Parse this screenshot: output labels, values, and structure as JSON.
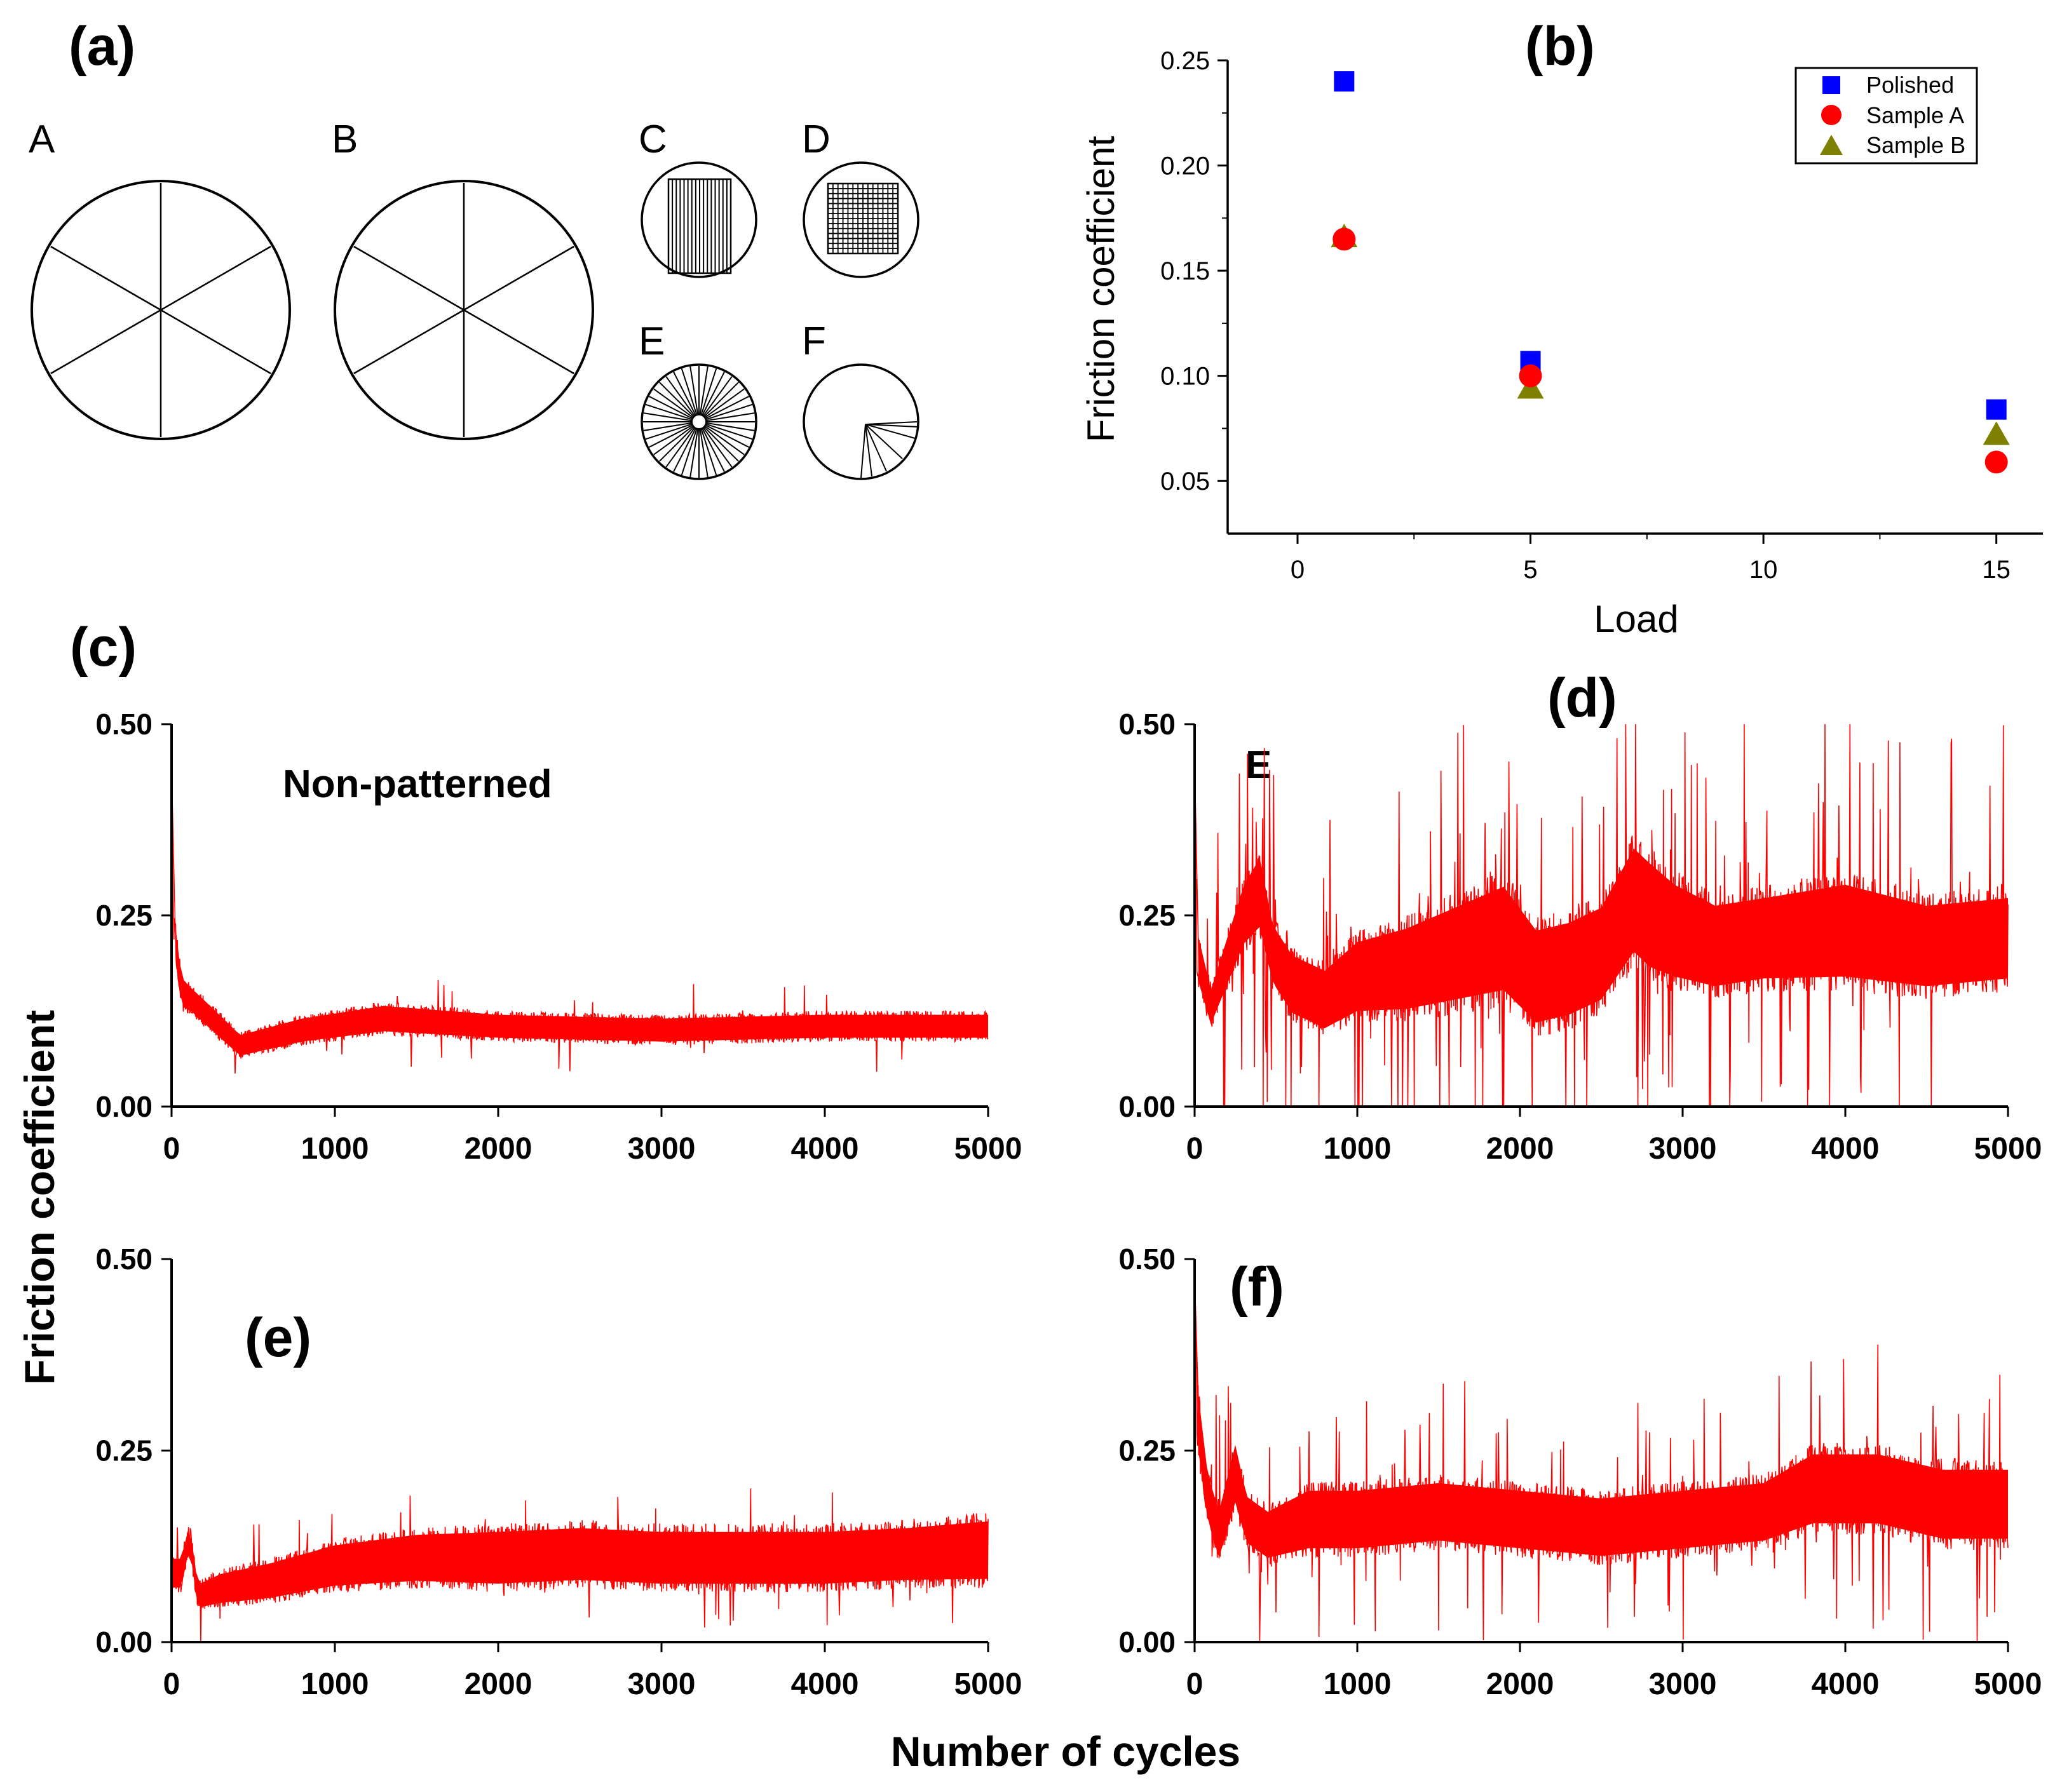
{
  "colors": {
    "polished": "#0000ff",
    "sample_a": "#ff0000",
    "sample_b": "#808000",
    "trace": "#ff0000",
    "ink": "#000000"
  },
  "panel_a": {
    "tag": "(a)",
    "patterns": [
      {
        "label": "A",
        "style": "spokes"
      },
      {
        "label": "B",
        "style": "spokes"
      },
      {
        "label": "C",
        "style": "vertical-lines"
      },
      {
        "label": "D",
        "style": "grid"
      },
      {
        "label": "E",
        "style": "dense-radial"
      },
      {
        "label": "F",
        "style": "fan"
      }
    ]
  },
  "chart_data": [
    {
      "id": "b",
      "type": "scatter",
      "tag": "(b)",
      "xlabel": "Load",
      "ylabel": "Friction coefficient",
      "xlim": [
        -1.5,
        16
      ],
      "ylim": [
        0.025,
        0.25
      ],
      "xticks": [
        0,
        5,
        10,
        15
      ],
      "xtick_labels": [
        "0",
        "5",
        "10",
        "15"
      ],
      "yticks": [
        0.05,
        0.1,
        0.15,
        0.2,
        0.25
      ],
      "ytick_labels": [
        "0.05",
        "0.10",
        "0.15",
        "0.20",
        "0.25"
      ],
      "legend_position": "top-right",
      "series": [
        {
          "name": "Polished",
          "marker": "square",
          "color": "#0000ff",
          "x": [
            1,
            5,
            15
          ],
          "y": [
            0.24,
            0.107,
            0.084
          ]
        },
        {
          "name": "Sample A",
          "marker": "circle",
          "color": "#ff0000",
          "x": [
            1,
            5,
            15
          ],
          "y": [
            0.165,
            0.1,
            0.059
          ]
        },
        {
          "name": "Sample B",
          "marker": "triangle",
          "color": "#808000",
          "x": [
            1,
            5,
            15
          ],
          "y": [
            0.166,
            0.094,
            0.072
          ]
        }
      ]
    },
    {
      "id": "c",
      "type": "line",
      "tag": "(c)",
      "annotation": "Non-patterned",
      "xlim": [
        0,
        5000
      ],
      "ylim": [
        0,
        0.5
      ],
      "xticks": [
        0,
        1000,
        2000,
        3000,
        4000,
        5000
      ],
      "xtick_labels": [
        "0",
        "1000",
        "2000",
        "3000",
        "4000",
        "5000"
      ],
      "yticks": [
        0,
        0.25,
        0.5
      ],
      "ytick_labels": [
        "0.00",
        "0.25",
        "0.50"
      ],
      "series": [
        {
          "name": "Non-patterned",
          "color": "#ff0000",
          "x": [
            0,
            15,
            60,
            120,
            220,
            420,
            800,
            1300,
            2000,
            3000,
            4000,
            5000
          ],
          "mean": [
            0.44,
            0.23,
            0.15,
            0.14,
            0.12,
            0.08,
            0.1,
            0.115,
            0.105,
            0.1,
            0.105,
            0.105
          ],
          "band": [
            0.04,
            0.03,
            0.025,
            0.02,
            0.02,
            0.018,
            0.02,
            0.022,
            0.02,
            0.02,
            0.02,
            0.02
          ]
        }
      ]
    },
    {
      "id": "d",
      "type": "line",
      "tag": "(d)",
      "annotation": "E",
      "xlim": [
        0,
        5000
      ],
      "ylim": [
        0,
        0.5
      ],
      "xticks": [
        0,
        1000,
        2000,
        3000,
        4000,
        5000
      ],
      "xtick_labels": [
        "0",
        "1000",
        "2000",
        "3000",
        "4000",
        "5000"
      ],
      "yticks": [
        0,
        0.25,
        0.5
      ],
      "ytick_labels": [
        "0.00",
        "0.25",
        "0.50"
      ],
      "series": [
        {
          "name": "E",
          "color": "#ff0000",
          "x": [
            0,
            15,
            100,
            200,
            300,
            400,
            480,
            600,
            800,
            1000,
            1300,
            1600,
            1900,
            2100,
            2300,
            2500,
            2700,
            2800,
            2950,
            3200,
            3500,
            4000,
            4500,
            5000
          ],
          "mean": [
            0.45,
            0.2,
            0.13,
            0.19,
            0.25,
            0.28,
            0.2,
            0.16,
            0.14,
            0.17,
            0.18,
            0.2,
            0.22,
            0.17,
            0.18,
            0.2,
            0.27,
            0.25,
            0.23,
            0.21,
            0.22,
            0.23,
            0.21,
            0.22
          ],
          "band": [
            0.04,
            0.04,
            0.03,
            0.04,
            0.05,
            0.06,
            0.05,
            0.05,
            0.05,
            0.06,
            0.07,
            0.08,
            0.09,
            0.08,
            0.08,
            0.08,
            0.09,
            0.09,
            0.08,
            0.07,
            0.07,
            0.08,
            0.07,
            0.07
          ]
        }
      ]
    },
    {
      "id": "e",
      "type": "line",
      "tag": "(e)",
      "xlim": [
        0,
        5000
      ],
      "ylim": [
        0,
        0.5
      ],
      "xticks": [
        0,
        1000,
        2000,
        3000,
        4000,
        5000
      ],
      "xtick_labels": [
        "0",
        "1000",
        "2000",
        "3000",
        "4000",
        "5000"
      ],
      "yticks": [
        0,
        0.25,
        0.5
      ],
      "ytick_labels": [
        "0.00",
        "0.25",
        "0.50"
      ],
      "series": [
        {
          "name": "(e)",
          "color": "#ff0000",
          "x": [
            0,
            60,
            110,
            160,
            300,
            600,
            1000,
            1500,
            2000,
            2500,
            3000,
            3500,
            4000,
            4500,
            5000
          ],
          "mean": [
            0.09,
            0.09,
            0.14,
            0.06,
            0.07,
            0.08,
            0.1,
            0.11,
            0.11,
            0.115,
            0.11,
            0.11,
            0.11,
            0.115,
            0.12
          ],
          "band": [
            0.025,
            0.025,
            0.02,
            0.02,
            0.025,
            0.03,
            0.035,
            0.04,
            0.045,
            0.045,
            0.045,
            0.045,
            0.045,
            0.045,
            0.05
          ]
        }
      ]
    },
    {
      "id": "f",
      "type": "line",
      "tag": "(f)",
      "xlim": [
        0,
        5000
      ],
      "ylim": [
        0,
        0.5
      ],
      "xticks": [
        0,
        1000,
        2000,
        3000,
        4000,
        5000
      ],
      "xtick_labels": [
        "0",
        "1000",
        "2000",
        "3000",
        "4000",
        "5000"
      ],
      "yticks": [
        0,
        0.25,
        0.5
      ],
      "ytick_labels": [
        "0.00",
        "0.25",
        "0.50"
      ],
      "series": [
        {
          "name": "(f)",
          "color": "#ff0000",
          "x": [
            0,
            15,
            80,
            150,
            250,
            320,
            450,
            700,
            1000,
            1500,
            2000,
            2500,
            3000,
            3500,
            3800,
            4200,
            4600,
            5000
          ],
          "mean": [
            0.47,
            0.3,
            0.19,
            0.14,
            0.22,
            0.16,
            0.14,
            0.16,
            0.16,
            0.17,
            0.16,
            0.15,
            0.16,
            0.17,
            0.2,
            0.2,
            0.18,
            0.18
          ],
          "band": [
            0.04,
            0.05,
            0.04,
            0.04,
            0.05,
            0.04,
            0.04,
            0.05,
            0.05,
            0.05,
            0.05,
            0.05,
            0.05,
            0.05,
            0.06,
            0.06,
            0.06,
            0.06
          ]
        }
      ]
    }
  ],
  "shared_axes": {
    "ylabel": "Friction coefficient",
    "xlabel": "Number of cycles"
  }
}
